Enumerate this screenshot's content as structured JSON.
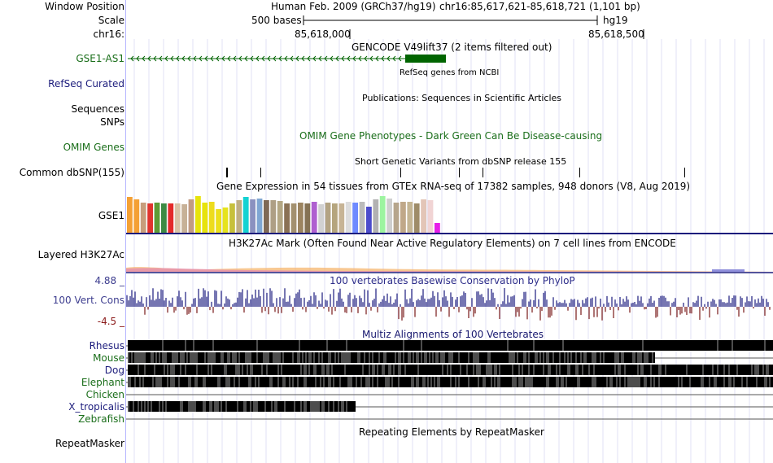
{
  "header": {
    "window_position_label": "Window Position",
    "scale_label": "Scale",
    "chrom_label": "chr16:",
    "assembly_text": "Human Feb. 2009 (GRCh37/hg19)",
    "position_text": "chr16:85,617,621-85,618,721 (1,101 bp)",
    "scale_bar_text": "500 bases",
    "scale_db": "hg19",
    "ticks": [
      "85,618,000",
      "85,618,500"
    ]
  },
  "tracks": {
    "gencode": {
      "title": "GENCODE V49lift37 (2 items filtered out)",
      "item_label": "GSE1-AS1",
      "color": "#006400"
    },
    "refseq": {
      "title": "RefSeq genes from NCBI",
      "label": "RefSeq Curated"
    },
    "publications": {
      "title": "Publications: Sequences in Scientific Articles",
      "label": "Sequences"
    },
    "snps_label": "SNPs",
    "omim": {
      "title": "OMIM Gene Phenotypes - Dark Green Can Be Disease-causing",
      "label": "OMIM Genes"
    },
    "dbsnp": {
      "title": "Short Genetic Variants from dbSNP release 155",
      "label": "Common dbSNP(155)"
    },
    "gtex": {
      "title": "Gene Expression in 54 tissues from GTEx RNA-seq of 17382 samples, 948 donors (V8, Aug 2019)",
      "label": "GSE1"
    },
    "h3k27ac": {
      "title": "H3K27Ac Mark (Often Found Near Active Regulatory Elements) on 7 cell lines from ENCODE",
      "label": "Layered H3K27Ac"
    },
    "conservation": {
      "title": "100 vertebrates Basewise Conservation by PhyloP",
      "label": "100 Vert. Cons",
      "max": "4.88 _",
      "min": "-4.5 _",
      "pos_color": "#3c3c91",
      "neg_color": "#8b3a3a"
    },
    "multiz": {
      "title": "Multiz Alignments of 100 Vertebrates",
      "species": [
        "Rhesus",
        "Mouse",
        "Dog",
        "Elephant",
        "Chicken",
        "X_tropicalis",
        "Zebrafish"
      ]
    },
    "repeatmasker": {
      "title": "Repeating Elements by RepeatMasker",
      "label": "RepeatMasker"
    }
  }
}
